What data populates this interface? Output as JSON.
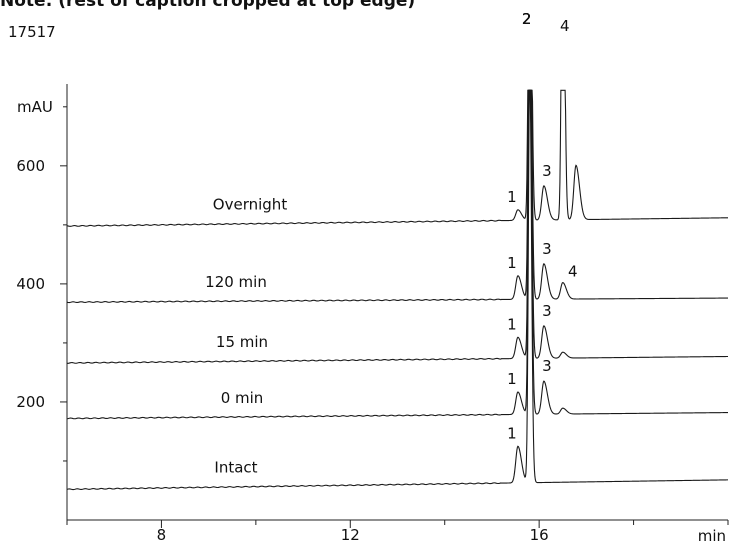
{
  "header_fragment": "Note: (rest of caption cropped at top edge)",
  "sample_id": "17517",
  "chart_data": {
    "type": "line",
    "title": "",
    "xlabel": "min",
    "ylabel": "mAU",
    "xlim": [
      6,
      20
    ],
    "ylim": [
      0,
      720
    ],
    "x_ticks": [
      8,
      12,
      16
    ],
    "x_minor_ticks": [
      6,
      10,
      14,
      18,
      20
    ],
    "y_ticks": [
      200,
      400,
      600
    ],
    "y_minor_ticks": [
      100,
      300,
      500,
      700
    ],
    "grid": false,
    "legend": "none",
    "line_color": "#1a1a1a",
    "traces": [
      {
        "name": "Overnight",
        "baseline": [
          [
            6,
            498
          ],
          [
            20,
            512
          ]
        ],
        "peaks": [
          {
            "label": "1",
            "rt": 15.55,
            "height": 18
          },
          {
            "label": "2",
            "rt": 15.8,
            "height": 700
          },
          {
            "label": "3",
            "rt": 16.1,
            "height": 58
          },
          {
            "label": "4",
            "rt": 16.5,
            "height": 640
          },
          {
            "label": "",
            "rt": 16.78,
            "height": 92
          }
        ]
      },
      {
        "name": "120 min",
        "baseline": [
          [
            6,
            369
          ],
          [
            20,
            376
          ]
        ],
        "peaks": [
          {
            "label": "1",
            "rt": 15.55,
            "height": 40
          },
          {
            "label": "2",
            "rt": 15.8,
            "height": 700
          },
          {
            "label": "3",
            "rt": 16.1,
            "height": 60
          },
          {
            "label": "4",
            "rt": 16.5,
            "height": 28
          }
        ]
      },
      {
        "name": "15 min",
        "baseline": [
          [
            6,
            266
          ],
          [
            20,
            277
          ]
        ],
        "peaks": [
          {
            "label": "1",
            "rt": 15.55,
            "height": 36
          },
          {
            "label": "2",
            "rt": 15.8,
            "height": 700
          },
          {
            "label": "3",
            "rt": 16.1,
            "height": 55
          },
          {
            "label": "",
            "rt": 16.5,
            "height": 10
          }
        ]
      },
      {
        "name": "0 min",
        "baseline": [
          [
            6,
            172
          ],
          [
            20,
            182
          ]
        ],
        "peaks": [
          {
            "label": "1",
            "rt": 15.55,
            "height": 38
          },
          {
            "label": "2",
            "rt": 15.8,
            "height": 700
          },
          {
            "label": "3",
            "rt": 16.1,
            "height": 56
          },
          {
            "label": "",
            "rt": 16.5,
            "height": 10
          }
        ]
      },
      {
        "name": "Intact",
        "baseline": [
          [
            6,
            52
          ],
          [
            20,
            68
          ]
        ],
        "peaks": [
          {
            "label": "1",
            "rt": 15.55,
            "height": 62
          },
          {
            "label": "2",
            "rt": 15.8,
            "height": 700
          }
        ]
      }
    ]
  }
}
